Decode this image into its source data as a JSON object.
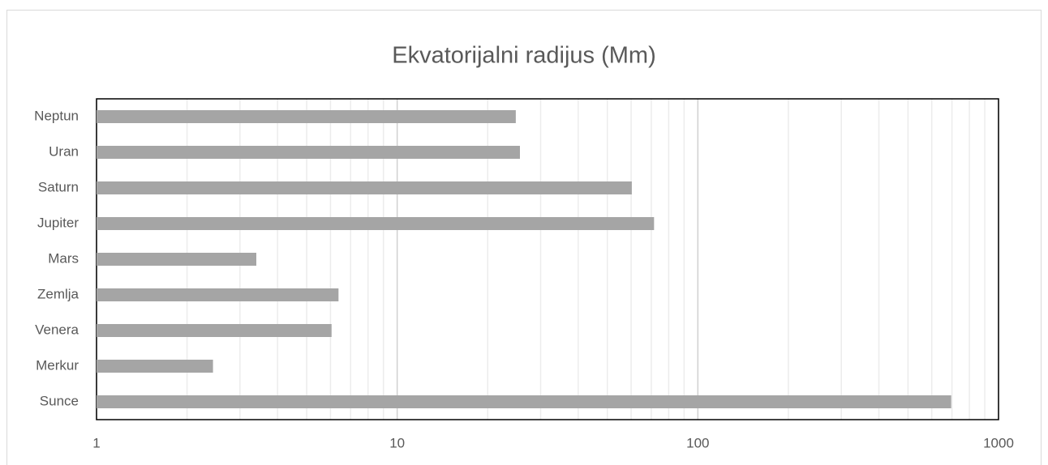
{
  "chart_data": {
    "type": "bar",
    "orientation": "horizontal",
    "title": "Ekvatorijalni radijus (Mm)",
    "categories": [
      "Sunce",
      "Merkur",
      "Venera",
      "Zemlja",
      "Mars",
      "Jupiter",
      "Saturn",
      "Uran",
      "Neptun"
    ],
    "values": [
      696,
      2.44,
      6.05,
      6.38,
      3.4,
      71.5,
      60.3,
      25.6,
      24.8
    ],
    "color": "#a5a5a5",
    "xscale": "log",
    "xlim": [
      1,
      1000
    ],
    "xticks": [
      1,
      10,
      100,
      1000
    ],
    "grid": true,
    "minor_grid": true
  }
}
